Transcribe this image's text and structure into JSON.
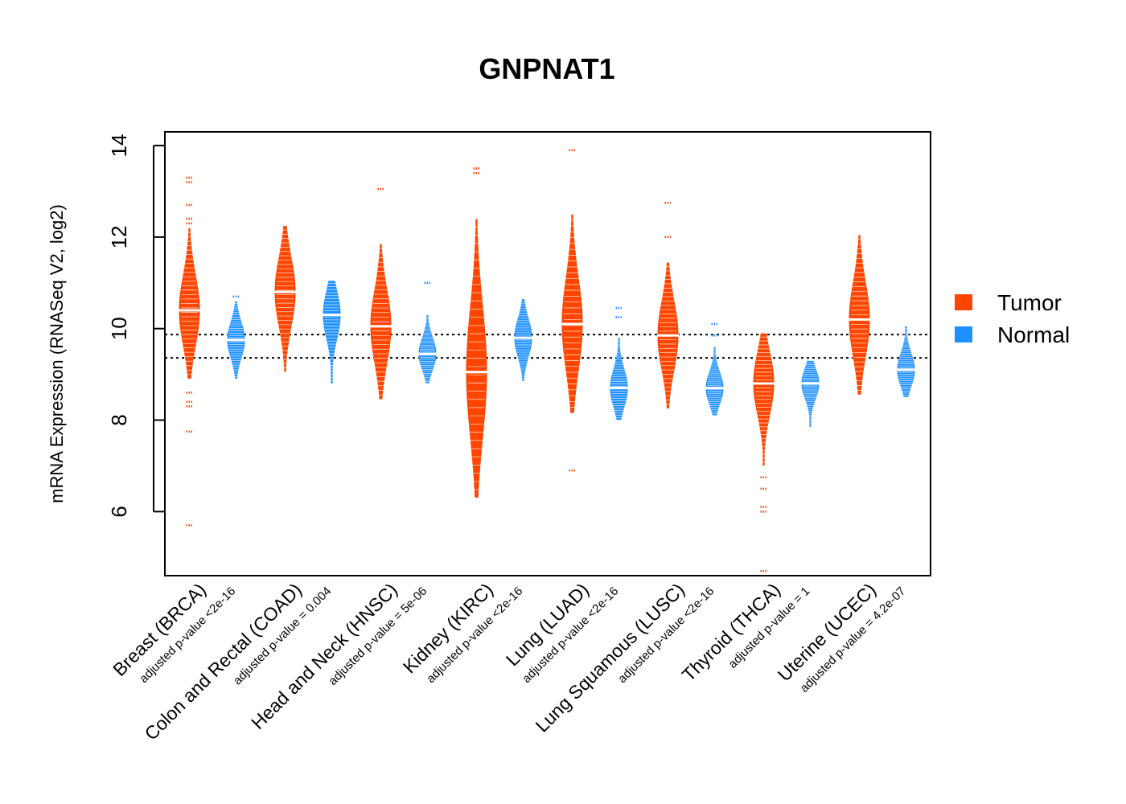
{
  "chart_data": {
    "type": "violin",
    "title": "GNPNAT1",
    "ylabel": "mRNA Expression (RNASeq V2, log2)",
    "ylim": [
      4.6,
      14.3
    ],
    "yticks": [
      6,
      8,
      10,
      12,
      14
    ],
    "reference_lines": [
      9.87,
      9.36
    ],
    "legend": {
      "position": "right",
      "entries": [
        {
          "label": "Tumor",
          "color": "#FF4500"
        },
        {
          "label": "Normal",
          "color": "#1E90FF"
        }
      ]
    },
    "categories": [
      {
        "label": "Breast (BRCA)",
        "pvalue": "adjusted p-value <2e-16",
        "tumor": {
          "median": 10.4,
          "min": 8.9,
          "max": 12.2,
          "outliers": [
            13.3,
            13.2,
            12.7,
            12.4,
            12.3,
            8.6,
            8.4,
            8.3,
            7.75,
            5.7
          ]
        },
        "normal": {
          "median": 9.75,
          "min": 8.9,
          "max": 10.6,
          "outliers": [
            10.7
          ]
        }
      },
      {
        "label": "Colon and Rectal (COAD)",
        "pvalue": "adjusted p-value = 0.004",
        "tumor": {
          "median": 10.8,
          "min": 9.05,
          "max": 12.25,
          "outliers": []
        },
        "normal": {
          "median": 10.3,
          "min": 8.8,
          "max": 11.05,
          "outliers": []
        }
      },
      {
        "label": "Head and Neck (HNSC)",
        "pvalue": "adjusted p-value = 5e-06",
        "tumor": {
          "median": 10.05,
          "min": 8.45,
          "max": 11.85,
          "outliers": [
            13.05
          ]
        },
        "normal": {
          "median": 9.45,
          "min": 8.8,
          "max": 10.3,
          "outliers": [
            11.0
          ]
        }
      },
      {
        "label": "Kidney (KIRC)",
        "pvalue": "adjusted p-value <2e-16",
        "tumor": {
          "median": 9.05,
          "min": 6.3,
          "max": 12.4,
          "outliers": [
            13.5,
            13.4
          ]
        },
        "normal": {
          "median": 9.8,
          "min": 8.85,
          "max": 10.65,
          "outliers": []
        }
      },
      {
        "label": "Lung (LUAD)",
        "pvalue": "adjusted p-value <2e-16",
        "tumor": {
          "median": 10.1,
          "min": 8.15,
          "max": 12.5,
          "outliers": [
            13.9,
            6.9
          ]
        },
        "normal": {
          "median": 8.7,
          "min": 8.0,
          "max": 9.8,
          "outliers": [
            10.45,
            10.25
          ]
        }
      },
      {
        "label": "Lung Squamous (LUSC)",
        "pvalue": "adjusted p-value <2e-16",
        "tumor": {
          "median": 9.85,
          "min": 8.25,
          "max": 11.45,
          "outliers": [
            12.75,
            12.0
          ]
        },
        "normal": {
          "median": 8.7,
          "min": 8.1,
          "max": 9.6,
          "outliers": [
            10.1,
            9.85
          ]
        }
      },
      {
        "label": "Thyroid (THCA)",
        "pvalue": "adjusted p-value = 1",
        "tumor": {
          "median": 8.8,
          "min": 7.0,
          "max": 9.9,
          "outliers": [
            6.75,
            6.5,
            6.1,
            6.0,
            4.7
          ]
        },
        "normal": {
          "median": 8.8,
          "min": 7.85,
          "max": 9.3,
          "outliers": []
        }
      },
      {
        "label": "Uterine (UCEC)",
        "pvalue": "adjusted p-value = 4.2e-07",
        "tumor": {
          "median": 10.2,
          "min": 8.55,
          "max": 12.05,
          "outliers": []
        },
        "normal": {
          "median": 9.1,
          "min": 8.5,
          "max": 10.05,
          "outliers": []
        }
      }
    ]
  }
}
